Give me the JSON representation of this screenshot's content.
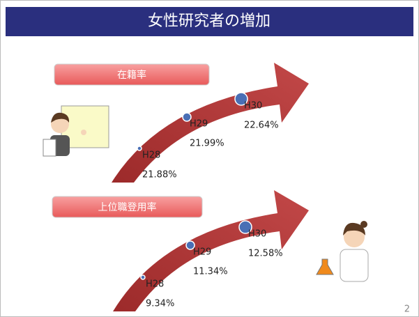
{
  "header": {
    "title": "女性研究者の増加"
  },
  "sections": [
    {
      "label": "在籍率",
      "points": [
        {
          "year": "H28",
          "value": "21.88%"
        },
        {
          "year": "H29",
          "value": "21.99%"
        },
        {
          "year": "H30",
          "value": "22.64%"
        }
      ]
    },
    {
      "label": "上位職登用率",
      "points": [
        {
          "year": "H28",
          "value": "9.34%"
        },
        {
          "year": "H29",
          "value": "11.34%"
        },
        {
          "year": "H30",
          "value": "12.58%"
        }
      ]
    }
  ],
  "page_number": "2"
}
